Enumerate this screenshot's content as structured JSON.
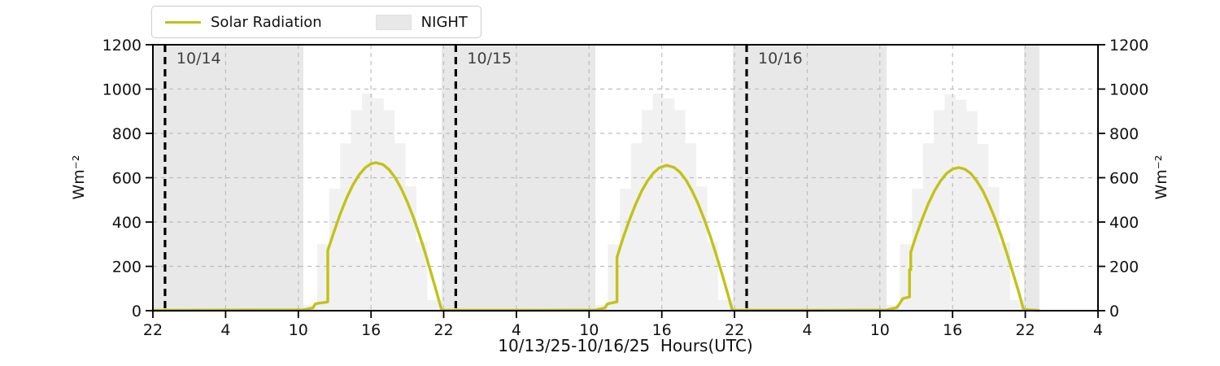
{
  "legend": {
    "solar_label": "Solar Radiation",
    "night_label": "NIGHT"
  },
  "axes": {
    "y_left_label": "Wm⁻²",
    "y_right_label": "Wm⁻²",
    "x_label": "10/13/25-10/16/25  Hours(UTC)"
  },
  "chart_data": {
    "type": "line",
    "title": "",
    "x_axis": {
      "label": "10/13/25-10/16/25  Hours(UTC)",
      "note": "hours since 10/13/25 22:00 UTC, ticks every 6 h",
      "range_hours": [
        0,
        78
      ],
      "tick_positions": [
        0,
        6,
        12,
        18,
        24,
        30,
        36,
        42,
        48,
        54,
        60,
        66,
        72,
        78
      ],
      "tick_labels": [
        "22",
        "4",
        "10",
        "16",
        "22",
        "4",
        "10",
        "16",
        "22",
        "4",
        "10",
        "16",
        "22",
        "4"
      ]
    },
    "y_axis": {
      "label": "Wm⁻²",
      "range": [
        0,
        1200
      ],
      "ticks": [
        "0",
        "200",
        "400",
        "600",
        "800",
        "1000",
        "1200"
      ],
      "tick_values": [
        0,
        200,
        400,
        600,
        800,
        1000,
        1200
      ],
      "gridline_values": [
        200,
        400,
        600,
        800,
        1000
      ]
    },
    "night_spans": [
      [
        0,
        12.42
      ],
      [
        23.83,
        36.52
      ],
      [
        47.86,
        60.55
      ],
      [
        71.89,
        73.17
      ]
    ],
    "day_markers": [
      {
        "t": 1,
        "label": "10/14"
      },
      {
        "t": 25,
        "label": "10/15"
      },
      {
        "t": 49,
        "label": "10/16"
      }
    ],
    "solar_peaks": [
      {
        "date": "10/14",
        "peak_wm2": 668,
        "peak_hour_utc": 16.4
      },
      {
        "date": "10/15",
        "peak_wm2": 656,
        "peak_hour_utc": 16.4
      },
      {
        "date": "10/16",
        "peak_wm2": 646,
        "peak_hour_utc": 16.5
      }
    ],
    "series": [
      {
        "name": "Solar Radiation",
        "color": "#c2c218",
        "points": [
          [
            0,
            2
          ],
          [
            6,
            3
          ],
          [
            12.42,
            4
          ],
          [
            13.2,
            12
          ],
          [
            13.4,
            30
          ],
          [
            13.6,
            33
          ],
          [
            14.3,
            38
          ],
          [
            14.43,
            40
          ],
          [
            14.43,
            272
          ],
          [
            15,
            365
          ],
          [
            15.5,
            442
          ],
          [
            16,
            510
          ],
          [
            16.5,
            567
          ],
          [
            17,
            612
          ],
          [
            17.5,
            644
          ],
          [
            18,
            663
          ],
          [
            18.4,
            668
          ],
          [
            19,
            659
          ],
          [
            19.5,
            636
          ],
          [
            20,
            600
          ],
          [
            20.5,
            551
          ],
          [
            21,
            491
          ],
          [
            21.5,
            421
          ],
          [
            22,
            342
          ],
          [
            22.5,
            256
          ],
          [
            23,
            163
          ],
          [
            23.4,
            87
          ],
          [
            23.8,
            8
          ],
          [
            23.9,
            2
          ],
          [
            30,
            2
          ],
          [
            36.52,
            3
          ],
          [
            37.3,
            12
          ],
          [
            37.5,
            30
          ],
          [
            37.7,
            33
          ],
          [
            38.15,
            38
          ],
          [
            38.3,
            40
          ],
          [
            38.3,
            241
          ],
          [
            38.8,
            327
          ],
          [
            39.3,
            405
          ],
          [
            39.8,
            475
          ],
          [
            40.3,
            536
          ],
          [
            40.8,
            584
          ],
          [
            41.3,
            621
          ],
          [
            41.8,
            645
          ],
          [
            42.4,
            656
          ],
          [
            43,
            647
          ],
          [
            43.5,
            625
          ],
          [
            44,
            589
          ],
          [
            44.5,
            541
          ],
          [
            45,
            482
          ],
          [
            45.5,
            413
          ],
          [
            46,
            336
          ],
          [
            46.5,
            251
          ],
          [
            47,
            160
          ],
          [
            47.5,
            66
          ],
          [
            47.8,
            6
          ],
          [
            47.9,
            2
          ],
          [
            54,
            2
          ],
          [
            60.55,
            3
          ],
          [
            61.4,
            14
          ],
          [
            61.6,
            30
          ],
          [
            61.9,
            55
          ],
          [
            62.3,
            60
          ],
          [
            62.45,
            62
          ],
          [
            62.45,
            185
          ],
          [
            62.55,
            185
          ],
          [
            62.55,
            264
          ],
          [
            63,
            339
          ],
          [
            63.5,
            415
          ],
          [
            64,
            483
          ],
          [
            64.5,
            540
          ],
          [
            65,
            585
          ],
          [
            65.5,
            619
          ],
          [
            66,
            639
          ],
          [
            66.5,
            646
          ],
          [
            67,
            639
          ],
          [
            67.5,
            619
          ],
          [
            68,
            585
          ],
          [
            68.5,
            540
          ],
          [
            69,
            482
          ],
          [
            69.5,
            415
          ],
          [
            70,
            339
          ],
          [
            70.5,
            255
          ],
          [
            71,
            167
          ],
          [
            71.5,
            76
          ],
          [
            71.85,
            6
          ],
          [
            73.1,
            1
          ]
        ]
      },
      {
        "name": "Clear-sky envelope (stepped background)",
        "color": "#f1f1f1",
        "days": [
          [
            [
              12.42,
              13.55,
              25
            ],
            [
              13.55,
              14.55,
              300
            ],
            [
              14.55,
              15.45,
              550
            ],
            [
              15.45,
              16.35,
              755
            ],
            [
              16.35,
              17.25,
              905
            ],
            [
              17.25,
              18.15,
              980
            ],
            [
              18.15,
              19.05,
              958
            ],
            [
              19.05,
              19.95,
              905
            ],
            [
              19.95,
              20.85,
              755
            ],
            [
              20.85,
              21.75,
              560
            ],
            [
              21.75,
              22.65,
              310
            ],
            [
              22.65,
              23.83,
              48
            ]
          ],
          [
            [
              36.52,
              37.55,
              25
            ],
            [
              37.55,
              38.55,
              300
            ],
            [
              38.55,
              39.45,
              550
            ],
            [
              39.45,
              40.35,
              755
            ],
            [
              40.35,
              41.25,
              905
            ],
            [
              41.25,
              42.15,
              980
            ],
            [
              42.15,
              43.05,
              958
            ],
            [
              43.05,
              43.95,
              905
            ],
            [
              43.95,
              44.85,
              755
            ],
            [
              44.85,
              45.75,
              560
            ],
            [
              45.75,
              46.65,
              310
            ],
            [
              46.65,
              47.86,
              48
            ]
          ],
          [
            [
              60.55,
              61.65,
              25
            ],
            [
              61.65,
              62.65,
              300
            ],
            [
              62.65,
              63.55,
              550
            ],
            [
              63.55,
              64.45,
              755
            ],
            [
              64.45,
              65.35,
              905
            ],
            [
              65.35,
              66.25,
              975
            ],
            [
              66.25,
              67.15,
              952
            ],
            [
              67.15,
              68.05,
              900
            ],
            [
              68.05,
              68.95,
              752
            ],
            [
              68.95,
              69.85,
              558
            ],
            [
              69.85,
              70.75,
              308
            ],
            [
              70.75,
              71.89,
              48
            ]
          ]
        ]
      }
    ],
    "colors": {
      "solar_line": "#c2c218",
      "night_fill": "#e8e8e8",
      "clear_sky_fill": "#f1f1f1",
      "grid": "#bdbdbd",
      "midnight_line": "#000000",
      "date_label": "#3f3f3f",
      "spine": "#000000"
    },
    "legend_position": "top-left",
    "grid": true
  }
}
